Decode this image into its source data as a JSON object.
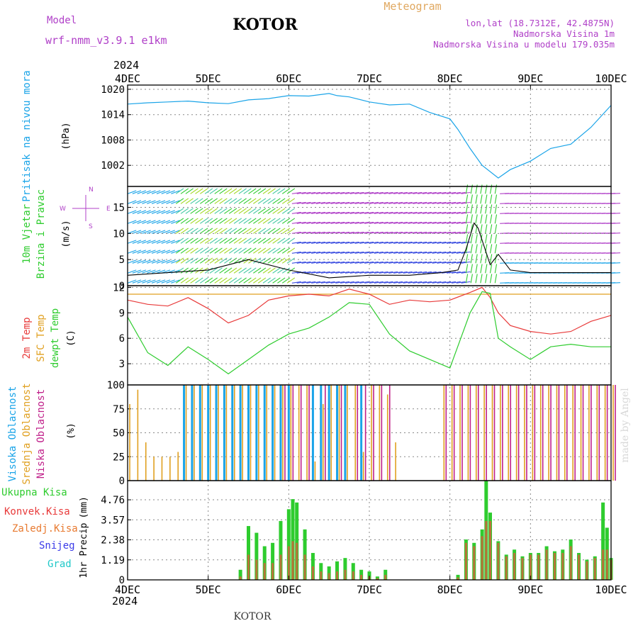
{
  "header": {
    "model_label": "Model",
    "model_name": "wrf-nmm_v3.9.1 e1km",
    "station": "KOTOR",
    "product": "Meteogram",
    "coords": "lon,lat (18.7312E, 42.4875N)",
    "altitude": "Nadmorska Visina 1m",
    "model_altitude": "Nadmorska Visina u modelu 179.035m",
    "footer_station": "KOTOR",
    "credit": "made by Angel"
  },
  "colors": {
    "purple": "#b040c8",
    "cyan": "#1aa4e8",
    "green": "#2ecc2e",
    "red": "#e83a3a",
    "orange": "#e0a020",
    "magenta": "#c0208a",
    "blue": "#3a3ae8",
    "teal": "#20c8c8",
    "gold": "#e0a860"
  },
  "time_axis": {
    "year": "2024",
    "labels": [
      "4DEC",
      "5DEC",
      "6DEC",
      "7DEC",
      "8DEC",
      "9DEC",
      "10DEC"
    ]
  },
  "chart_data": [
    {
      "type": "line",
      "name": "pressure",
      "ylabel_left": "Pritisak na nivou mora",
      "unit": "(hPa)",
      "ylim": [
        997,
        1021
      ],
      "yticks": [
        "1002",
        "1008",
        "1014",
        "1020"
      ],
      "x_days": [
        0,
        0.25,
        0.5,
        0.75,
        1.0,
        1.25,
        1.5,
        1.75,
        2.0,
        2.25,
        2.5,
        2.6,
        2.75,
        3.0,
        3.25,
        3.5,
        3.75,
        4.0,
        4.1,
        4.25,
        4.4,
        4.6,
        4.75,
        5.0,
        5.25,
        5.5,
        5.75,
        6.0
      ],
      "series": [
        {
          "values": [
            1016.5,
            1016.8,
            1017.0,
            1017.2,
            1016.8,
            1016.6,
            1017.5,
            1017.8,
            1018.5,
            1018.4,
            1019.0,
            1018.5,
            1018.2,
            1017.0,
            1016.3,
            1016.5,
            1014.5,
            1013.0,
            1010.5,
            1006.0,
            1002.0,
            999.0,
            1001.0,
            1003.0,
            1006.0,
            1007.0,
            1011.0,
            1016.2
          ]
        }
      ]
    },
    {
      "type": "line",
      "name": "wind",
      "ylabel_left": "10m Vjetar",
      "ylabel_left2": "Brzina i Pravac",
      "unit": "(m/s)",
      "compass": [
        "N",
        "S",
        "W",
        "E"
      ],
      "ylim": [
        0,
        19
      ],
      "yticks": [
        "0",
        "5",
        "10",
        "15"
      ],
      "x_days": [
        0,
        0.5,
        1.0,
        1.5,
        2.0,
        2.5,
        3.0,
        3.5,
        3.9,
        4.1,
        4.2,
        4.3,
        4.35,
        4.5,
        4.6,
        4.75,
        5.0,
        5.5,
        6.0
      ],
      "series": [
        {
          "values": [
            2,
            2.5,
            3,
            5,
            3,
            1.5,
            2,
            2,
            2.5,
            3,
            7,
            12,
            11,
            4,
            6,
            3,
            2.5,
            2.5,
            2.5
          ]
        }
      ]
    },
    {
      "type": "line",
      "name": "temperature",
      "ylabel_left": "2m Temp",
      "ylabel_left2": "SFC Temp",
      "ylabel_left3": "dewpt Temp",
      "unit": "(C)",
      "ylim": [
        0.5,
        12.2
      ],
      "yticks": [
        "3",
        "6",
        "9",
        "12"
      ],
      "x_days": [
        0,
        0.25,
        0.5,
        0.75,
        1.0,
        1.25,
        1.5,
        1.75,
        2.0,
        2.25,
        2.5,
        2.75,
        3.0,
        3.25,
        3.5,
        3.75,
        4.0,
        4.25,
        4.4,
        4.5,
        4.6,
        4.75,
        5.0,
        5.25,
        5.5,
        5.75,
        6.0
      ],
      "series": [
        {
          "name": "2m Temp",
          "values": [
            10.5,
            10.0,
            9.8,
            10.8,
            9.5,
            7.8,
            8.7,
            10.5,
            11.0,
            11.2,
            11.0,
            11.8,
            11.2,
            10.0,
            10.5,
            10.3,
            10.5,
            11.4,
            12.0,
            10.8,
            9.0,
            7.5,
            6.8,
            6.5,
            6.8,
            8.0,
            8.7
          ]
        },
        {
          "name": "SFC Temp",
          "values": [
            11.2,
            11.2,
            11.2,
            11.2,
            11.2,
            11.2,
            11.2,
            11.2,
            11.2,
            11.2,
            11.2,
            11.2,
            11.2,
            11.2,
            11.2,
            11.2,
            11.2,
            11.2,
            11.2,
            11.2,
            11.2,
            11.2,
            11.2,
            11.2,
            11.2,
            11.2,
            11.2
          ]
        },
        {
          "name": "dewpt Temp",
          "values": [
            8.5,
            4.3,
            2.8,
            5.0,
            3.5,
            1.8,
            3.5,
            5.2,
            6.5,
            7.2,
            8.5,
            10.2,
            10.0,
            6.5,
            4.5,
            3.5,
            2.5,
            9.0,
            11.5,
            11.3,
            6.0,
            5.0,
            3.5,
            5.0,
            5.3,
            5.0,
            5.0
          ]
        }
      ]
    },
    {
      "type": "bar",
      "name": "cloud cover",
      "ylabel_left": "Visoka Oblacnost",
      "ylabel_left2": "Srednja Oblacnost",
      "ylabel_left3": "Niska Oblacnost",
      "unit": "(%)",
      "ylim": [
        0,
        100
      ],
      "yticks": [
        "0",
        "25",
        "50",
        "75",
        "100"
      ],
      "x_days": [
        0,
        0.1,
        0.2,
        0.3,
        0.4,
        0.5,
        0.6,
        0.7,
        0.8,
        0.9,
        1.0,
        1.1,
        1.2,
        1.3,
        1.4,
        1.5,
        1.6,
        1.7,
        1.8,
        1.9,
        2.0,
        2.1,
        2.2,
        2.3,
        2.4,
        2.5,
        2.6,
        2.7,
        2.8,
        2.9,
        3.0,
        3.1,
        3.2,
        3.3,
        3.4,
        3.5,
        3.6,
        3.7,
        3.8,
        3.9,
        4.0,
        4.1,
        4.2,
        4.3,
        4.4,
        4.5,
        4.6,
        4.7,
        4.8,
        4.9,
        5.0,
        5.1,
        5.2,
        5.3,
        5.4,
        5.5,
        5.6,
        5.7,
        5.8,
        5.9,
        6.0
      ],
      "series": [
        {
          "name": "Visoka Oblacnost",
          "values": [
            0,
            0,
            0,
            0,
            0,
            0,
            0,
            100,
            100,
            100,
            100,
            100,
            100,
            100,
            100,
            100,
            100,
            100,
            100,
            100,
            100,
            0,
            0,
            100,
            100,
            100,
            100,
            100,
            0,
            100,
            0,
            0,
            0,
            0,
            0,
            0,
            0,
            0,
            0,
            0,
            0,
            0,
            0,
            0,
            0,
            0,
            0,
            0,
            0,
            0,
            0,
            0,
            0,
            0,
            0,
            0,
            0,
            0,
            0,
            0,
            0
          ]
        },
        {
          "name": "Srednja Oblacnost",
          "values": [
            80,
            95,
            40,
            25,
            25,
            25,
            30,
            100,
            100,
            100,
            100,
            100,
            100,
            100,
            100,
            100,
            100,
            100,
            100,
            100,
            100,
            100,
            100,
            20,
            80,
            100,
            100,
            100,
            100,
            30,
            100,
            100,
            90,
            40,
            0,
            0,
            0,
            0,
            0,
            100,
            100,
            100,
            100,
            100,
            100,
            100,
            100,
            100,
            100,
            100,
            100,
            100,
            100,
            100,
            100,
            100,
            100,
            100,
            100,
            100,
            100
          ]
        },
        {
          "name": "Niska Oblacnost",
          "values": [
            0,
            0,
            0,
            0,
            0,
            0,
            0,
            0,
            0,
            0,
            0,
            0,
            0,
            0,
            0,
            0,
            0,
            0,
            0,
            100,
            100,
            100,
            100,
            0,
            100,
            0,
            100,
            0,
            100,
            100,
            100,
            100,
            100,
            0,
            0,
            0,
            0,
            0,
            0,
            100,
            100,
            100,
            100,
            100,
            100,
            100,
            100,
            100,
            100,
            100,
            100,
            100,
            100,
            100,
            100,
            100,
            100,
            100,
            100,
            100,
            100
          ]
        }
      ]
    },
    {
      "type": "bar",
      "name": "precipitation",
      "ylabel_left": "1hr Precip",
      "unit": "(mm)",
      "legend": [
        "Ukupna Kisa",
        "Konvek.Kisa",
        "Zaledj.Kisa",
        "Snijeg",
        "Grad"
      ],
      "ylim": [
        0,
        5.9
      ],
      "yticks": [
        "0",
        "1.19",
        "2.38",
        "3.57",
        "4.76"
      ],
      "x_days": [
        1.4,
        1.5,
        1.6,
        1.7,
        1.8,
        1.9,
        2.0,
        2.05,
        2.1,
        2.2,
        2.3,
        2.4,
        2.5,
        2.6,
        2.7,
        2.8,
        2.9,
        3.0,
        3.1,
        3.2,
        4.1,
        4.2,
        4.3,
        4.4,
        4.45,
        4.5,
        4.6,
        4.7,
        4.8,
        4.9,
        5.0,
        5.1,
        5.2,
        5.3,
        5.4,
        5.5,
        5.6,
        5.7,
        5.8,
        5.9,
        5.95,
        6.0
      ],
      "series": [
        {
          "name": "Ukupna Kisa",
          "values": [
            0.6,
            3.2,
            2.8,
            2.0,
            2.2,
            3.5,
            4.2,
            4.8,
            4.6,
            3.0,
            1.6,
            1.0,
            0.8,
            1.1,
            1.3,
            1.0,
            0.6,
            0.5,
            0.2,
            0.6,
            0.3,
            2.4,
            2.2,
            3.0,
            5.9,
            4.0,
            2.3,
            1.5,
            1.8,
            1.4,
            1.6,
            1.6,
            2.0,
            1.7,
            1.8,
            2.4,
            1.6,
            1.2,
            1.4,
            4.6,
            3.1,
            1.3
          ]
        },
        {
          "name": "Konvek.Kisa",
          "values": [
            0.2,
            1.5,
            1.2,
            1.0,
            1.0,
            1.5,
            2.0,
            2.3,
            2.2,
            1.5,
            0.8,
            0.5,
            0.4,
            0.5,
            0.6,
            0.5,
            0.3,
            0.2,
            0.1,
            0.3,
            0.15,
            2.2,
            2.0,
            2.6,
            3.5,
            3.5,
            2.2,
            1.4,
            1.6,
            1.3,
            1.5,
            1.5,
            1.8,
            1.6,
            1.6,
            2.0,
            1.5,
            1.1,
            1.3,
            1.8,
            1.8,
            1.2
          ]
        }
      ]
    }
  ]
}
